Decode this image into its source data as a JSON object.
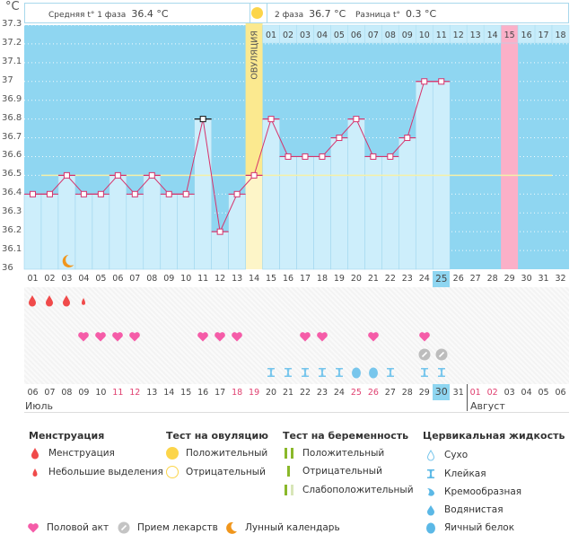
{
  "header": {
    "unit": "°C",
    "phase1_label": "Средняя t° 1 фаза",
    "phase1_value": "36.4 °C",
    "phase2_label": "2 фаза",
    "phase2_value": "36.7 °C",
    "diff_label": "Разница t°",
    "diff_value": "0.3 °C",
    "ovulation_label": "ОВУЛЯЦИЯ"
  },
  "colors": {
    "sky": "#8fd6f1",
    "bar": "#cdeefb",
    "line": "#d6336c",
    "ovulation": "#fbe98f",
    "period_predict": "#fbb0c8",
    "coverline": "#f5f0a8",
    "blood": "#f04a4a",
    "heart": "#f55ca8",
    "mucus": "#78c6ec",
    "pill": "#bdbdbd",
    "moon": "#f0961c"
  },
  "chart_data": {
    "type": "bar",
    "title": "",
    "xlabel": "",
    "ylabel": "°C",
    "ylim": [
      36.0,
      37.3
    ],
    "yticks": [
      "36",
      "36.1",
      "36.2",
      "36.3",
      "36.4",
      "36.5",
      "36.6",
      "36.7",
      "36.8",
      "36.9",
      "37",
      "37.1",
      "37.2",
      "37.3"
    ],
    "cycle_days": [
      "01",
      "02",
      "03",
      "04",
      "05",
      "06",
      "07",
      "08",
      "09",
      "10",
      "11",
      "12",
      "13",
      "14",
      "15",
      "16",
      "17",
      "18",
      "19",
      "20",
      "21",
      "22",
      "23",
      "24",
      "25",
      "26",
      "27",
      "28",
      "29",
      "30",
      "31",
      "32"
    ],
    "values": [
      36.4,
      36.4,
      36.5,
      36.4,
      36.4,
      36.5,
      36.4,
      36.5,
      36.4,
      36.4,
      36.8,
      36.2,
      36.4,
      36.5,
      36.8,
      36.6,
      36.6,
      36.6,
      36.7,
      36.8,
      36.6,
      36.6,
      36.7,
      37.0,
      37.0
    ],
    "coverline": 36.5,
    "coverline_days": [
      2,
      31
    ],
    "highlighted_point_day": 11,
    "ovulation_day": 14,
    "today_day": 25,
    "next_period_day": 29,
    "luteal_day_labels": [
      "01",
      "02",
      "03",
      "04",
      "05",
      "06",
      "07",
      "08",
      "09",
      "10",
      "11",
      "12",
      "13",
      "14",
      "15",
      "16",
      "17",
      "18"
    ],
    "luteal_highlight": "15",
    "moon_day": 3
  },
  "dates": {
    "labels": [
      "06",
      "07",
      "08",
      "09",
      "10",
      "11",
      "12",
      "13",
      "14",
      "15",
      "16",
      "17",
      "18",
      "19",
      "20",
      "21",
      "22",
      "23",
      "24",
      "25",
      "26",
      "27",
      "28",
      "29",
      "30",
      "31",
      "01",
      "02",
      "03",
      "04",
      "05",
      "06"
    ],
    "red_days": [
      "11",
      "12",
      "18",
      "19",
      "25",
      "26",
      "01",
      "02"
    ],
    "today": "30",
    "month1": "Июль",
    "month2": "Август"
  },
  "events": {
    "menstruation": [
      1,
      2,
      3
    ],
    "spotting": [
      4
    ],
    "intercourse": [
      4,
      5,
      6,
      7,
      11,
      12,
      13,
      17,
      18,
      21,
      24
    ],
    "medication": [
      24,
      25
    ],
    "mucus_sticky": [
      15,
      16,
      17,
      18,
      19,
      22,
      24,
      25
    ],
    "mucus_eggwhite": [
      20,
      21
    ]
  },
  "legend": {
    "menstruation": {
      "title": "Менструация",
      "items": [
        "Менструация",
        "Небольшие выделения"
      ]
    },
    "ovulation_test": {
      "title": "Тест на овуляцию",
      "items": [
        "Положительный",
        "Отрицательный"
      ]
    },
    "pregnancy_test": {
      "title": "Тест на беременность",
      "items": [
        "Положительный",
        "Отрицательный",
        "Слабоположительный"
      ]
    },
    "cervical": {
      "title": "Цервикальная жидкость",
      "items": [
        "Сухо",
        "Клейкая",
        "Кремообразная",
        "Водянистая",
        "Яичный белок"
      ]
    },
    "other": [
      "Половой акт",
      "Прием лекарств",
      "Лунный календарь"
    ]
  }
}
